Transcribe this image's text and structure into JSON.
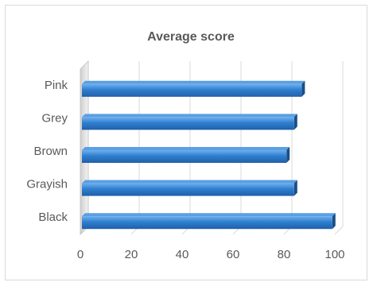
{
  "chart_data": {
    "type": "bar",
    "orientation": "horizontal",
    "title": "Average score",
    "categories": [
      "Pink",
      "Grey",
      "Brown",
      "Grayish",
      "Black"
    ],
    "values": [
      87,
      84,
      81,
      84,
      99
    ],
    "xlim": [
      0,
      100
    ],
    "xticks": [
      0,
      20,
      40,
      60,
      80,
      100
    ],
    "grid": true,
    "legend": "none",
    "bar_color": "#2f7fd0",
    "bar_dark_color": "#1a4f86"
  }
}
